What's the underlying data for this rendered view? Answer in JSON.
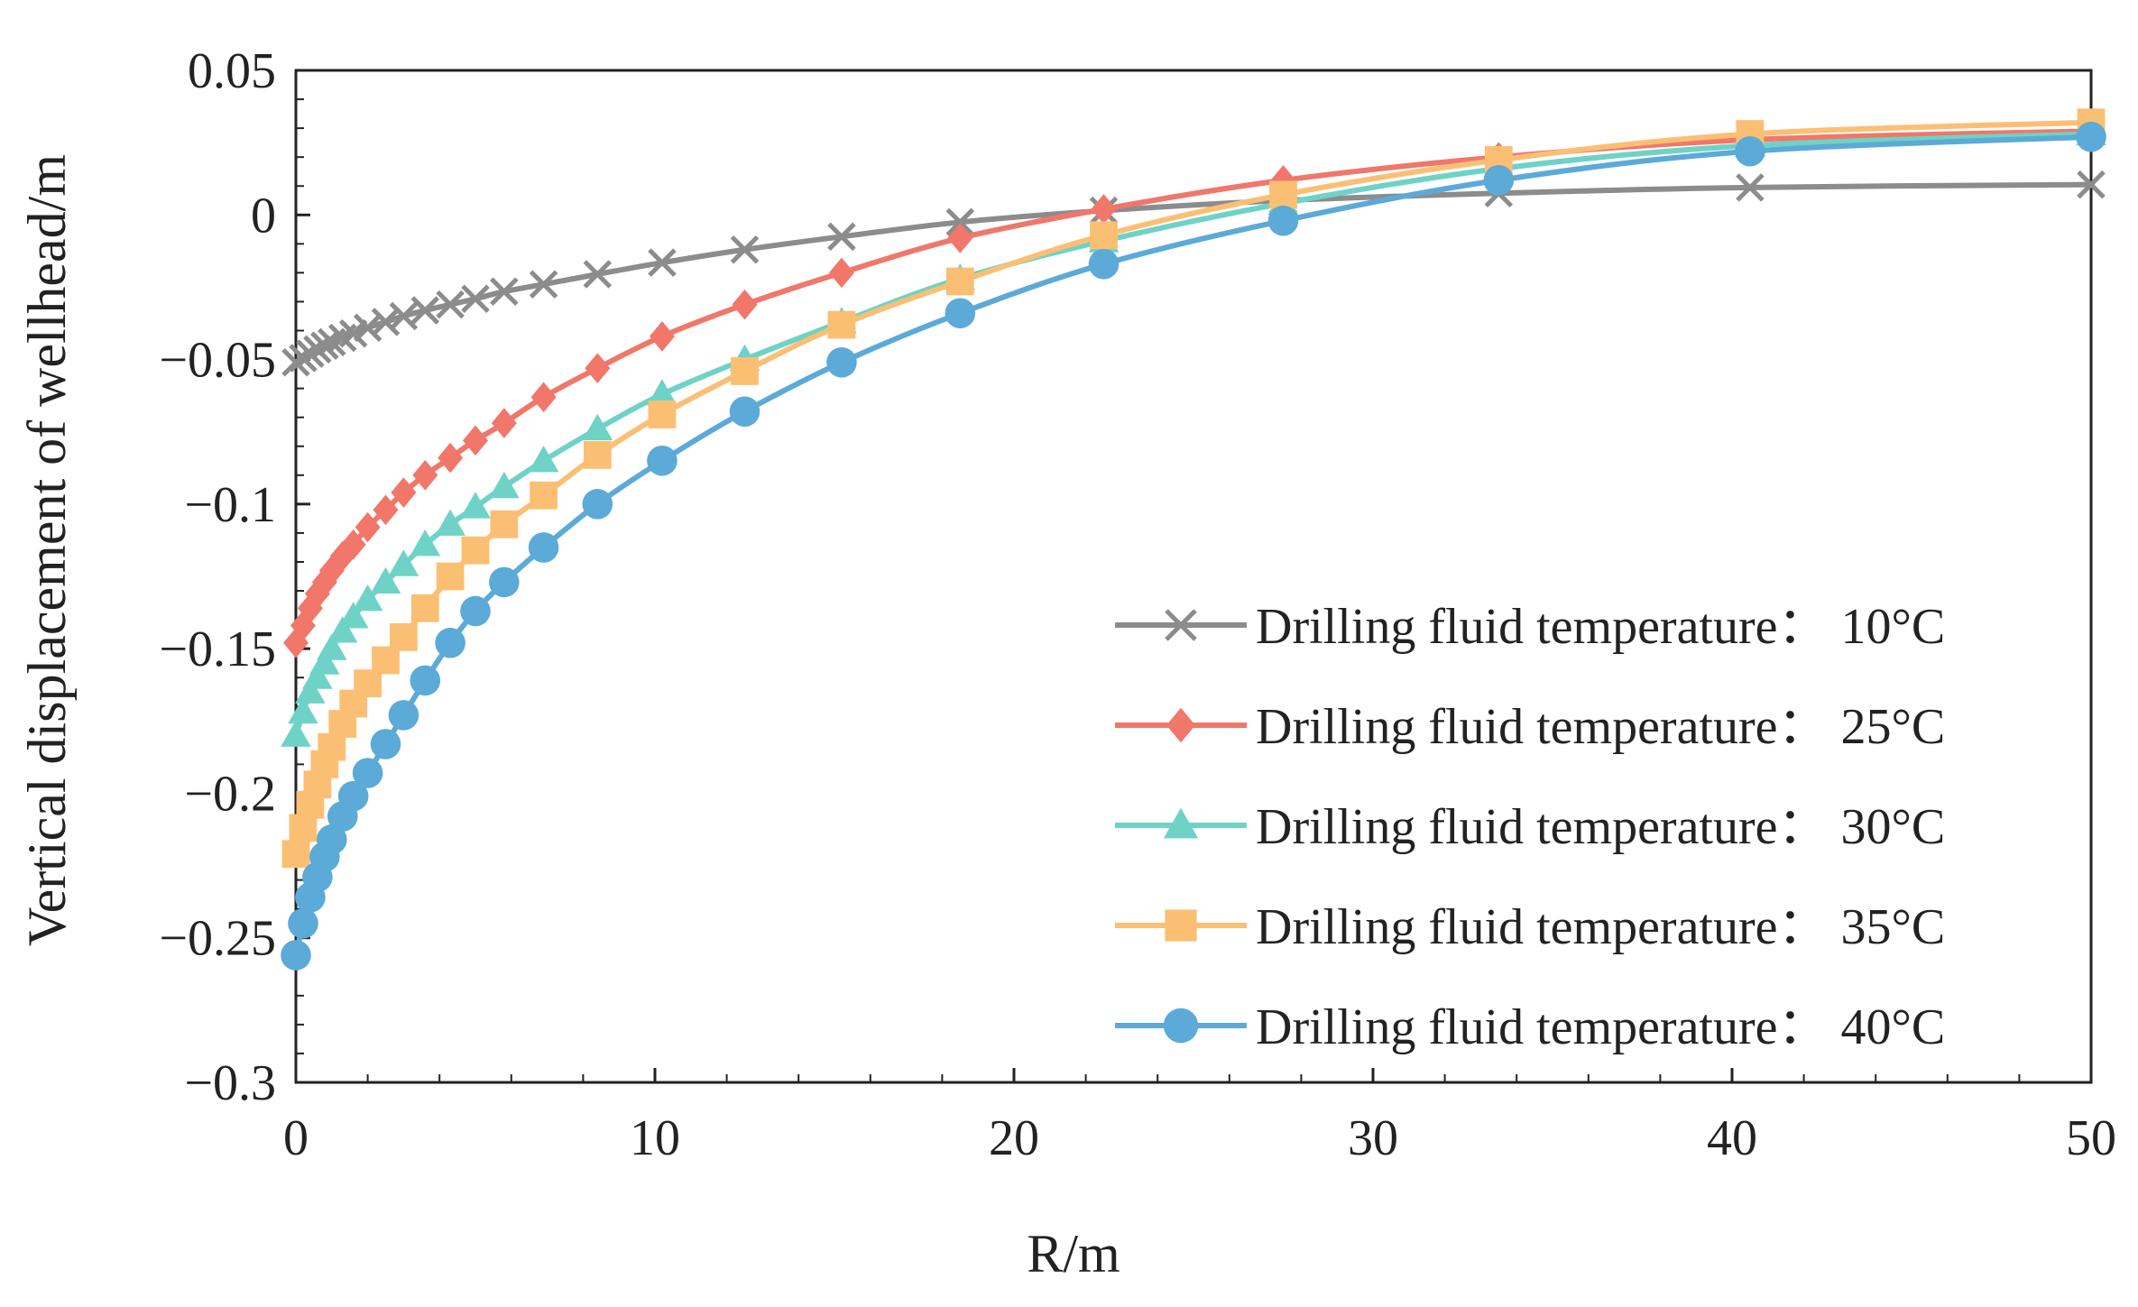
{
  "chart_data": {
    "type": "line",
    "title": "",
    "xlabel": "R/m",
    "ylabel": "Vertical displacement of wellhead/m",
    "xlim": [
      0,
      50
    ],
    "ylim": [
      -0.3,
      0.05
    ],
    "x_ticks": [
      0,
      10,
      20,
      30,
      40,
      50
    ],
    "x_tick_labels": [
      "0",
      "10",
      "20",
      "30",
      "40",
      "50"
    ],
    "y_ticks": [
      0.05,
      0,
      -0.05,
      -0.1,
      -0.15,
      -0.2,
      -0.25,
      -0.3
    ],
    "y_tick_labels": [
      "0.05",
      "0",
      "−0.05",
      "−0.1",
      "−0.15",
      "−0.2",
      "−0.25",
      "−0.3"
    ],
    "grid": false,
    "legend_position": "lower-right",
    "series": [
      {
        "name": "Drilling fluid temperature： 10°C",
        "color": "#8c8c8c",
        "marker": "x",
        "x": [
          0,
          0.2,
          0.4,
          0.6,
          0.8,
          1.0,
          1.3,
          1.6,
          2.0,
          2.5,
          3.0,
          3.6,
          4.3,
          5.0,
          5.8,
          6.9,
          8.4,
          10.2,
          12.5,
          15.2,
          18.5,
          22.5,
          27.5,
          33.5,
          40.5,
          50
        ],
        "y": [
          -0.051,
          -0.0495,
          -0.048,
          -0.0465,
          -0.0452,
          -0.044,
          -0.0425,
          -0.041,
          -0.039,
          -0.037,
          -0.035,
          -0.033,
          -0.031,
          -0.029,
          -0.0265,
          -0.024,
          -0.0205,
          -0.0165,
          -0.012,
          -0.0075,
          -0.0025,
          0.0015,
          0.005,
          0.0075,
          0.0095,
          0.0105
        ]
      },
      {
        "name": "Drilling fluid temperature： 25°C",
        "color": "#f0776a",
        "marker": "diamond",
        "x": [
          0,
          0.2,
          0.4,
          0.6,
          0.8,
          1.0,
          1.3,
          1.6,
          2.0,
          2.5,
          3.0,
          3.6,
          4.3,
          5.0,
          5.8,
          6.9,
          8.4,
          10.2,
          12.5,
          15.2,
          18.5,
          22.5,
          27.5,
          33.5,
          40.5,
          50
        ],
        "y": [
          -0.148,
          -0.142,
          -0.136,
          -0.131,
          -0.127,
          -0.123,
          -0.118,
          -0.114,
          -0.108,
          -0.102,
          -0.096,
          -0.09,
          -0.084,
          -0.078,
          -0.072,
          -0.063,
          -0.053,
          -0.042,
          -0.031,
          -0.02,
          -0.008,
          0.002,
          0.012,
          0.02,
          0.026,
          0.029
        ]
      },
      {
        "name": "Drilling fluid temperature： 30°C",
        "color": "#6ed3c6",
        "marker": "triangle",
        "x": [
          0,
          0.2,
          0.4,
          0.6,
          0.8,
          1.0,
          1.3,
          1.6,
          2.0,
          2.5,
          3.0,
          3.6,
          4.3,
          5.0,
          5.8,
          6.9,
          8.4,
          10.2,
          12.5,
          15.2,
          18.5,
          22.5,
          27.5,
          33.5,
          40.5,
          50
        ],
        "y": [
          -0.18,
          -0.172,
          -0.165,
          -0.16,
          -0.155,
          -0.15,
          -0.144,
          -0.139,
          -0.133,
          -0.127,
          -0.121,
          -0.114,
          -0.107,
          -0.101,
          -0.094,
          -0.085,
          -0.074,
          -0.062,
          -0.05,
          -0.037,
          -0.022,
          -0.009,
          0.004,
          0.016,
          0.024,
          0.028
        ]
      },
      {
        "name": "Drilling fluid temperature： 35°C",
        "color": "#fbbf74",
        "marker": "square",
        "x": [
          0,
          0.2,
          0.4,
          0.6,
          0.8,
          1.0,
          1.3,
          1.6,
          2.0,
          2.5,
          3.0,
          3.6,
          4.3,
          5.0,
          5.8,
          6.9,
          8.4,
          10.2,
          12.5,
          15.2,
          18.5,
          22.5,
          27.5,
          33.5,
          40.5,
          50
        ],
        "y": [
          -0.221,
          -0.212,
          -0.204,
          -0.197,
          -0.19,
          -0.184,
          -0.176,
          -0.169,
          -0.162,
          -0.154,
          -0.146,
          -0.136,
          -0.125,
          -0.116,
          -0.107,
          -0.097,
          -0.083,
          -0.069,
          -0.054,
          -0.038,
          -0.023,
          -0.007,
          0.007,
          0.019,
          0.028,
          0.032
        ]
      },
      {
        "name": "Drilling fluid temperature： 40°C",
        "color": "#5baad8",
        "marker": "circle",
        "x": [
          0,
          0.2,
          0.4,
          0.6,
          0.8,
          1.0,
          1.3,
          1.6,
          2.0,
          2.5,
          3.0,
          3.6,
          4.3,
          5.0,
          5.8,
          6.9,
          8.4,
          10.2,
          12.5,
          15.2,
          18.5,
          22.5,
          27.5,
          33.5,
          40.5,
          50
        ],
        "y": [
          -0.256,
          -0.245,
          -0.236,
          -0.229,
          -0.222,
          -0.216,
          -0.208,
          -0.201,
          -0.193,
          -0.183,
          -0.173,
          -0.161,
          -0.148,
          -0.137,
          -0.127,
          -0.115,
          -0.1,
          -0.085,
          -0.068,
          -0.051,
          -0.034,
          -0.017,
          -0.002,
          0.012,
          0.022,
          0.027
        ]
      }
    ]
  }
}
